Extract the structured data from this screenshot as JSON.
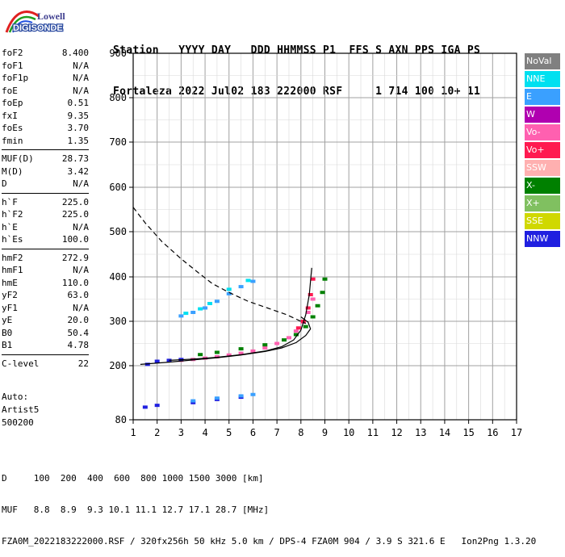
{
  "header": {
    "line1": "Station   YYYY DAY   DDD HHMMSS P1  FFS S AXN PPS IGA PS",
    "line2": "Fortaleza 2022 Jul02 183 222000 RSF     1 714 100 10+ 11"
  },
  "logo": {
    "line1": "Lowell",
    "line2": "DIGISONDE"
  },
  "params": [
    {
      "label": "foF2",
      "value": "8.400"
    },
    {
      "label": "foF1",
      "value": "N/A"
    },
    {
      "label": "foF1p",
      "value": "N/A"
    },
    {
      "label": "foE",
      "value": "N/A"
    },
    {
      "label": "foEp",
      "value": "0.51"
    },
    {
      "label": "fxI",
      "value": "9.35"
    },
    {
      "label": "foEs",
      "value": "3.70"
    },
    {
      "label": "fmin",
      "value": "1.35"
    },
    {
      "sep": true
    },
    {
      "label": "MUF(D)",
      "value": "28.73"
    },
    {
      "label": "M(D)",
      "value": "3.42"
    },
    {
      "label": "D",
      "value": "N/A"
    },
    {
      "sep": true
    },
    {
      "label": "h`F",
      "value": "225.0"
    },
    {
      "label": "h`F2",
      "value": "225.0"
    },
    {
      "label": "h`E",
      "value": "N/A"
    },
    {
      "label": "h`Es",
      "value": "100.0"
    },
    {
      "sep": true
    },
    {
      "label": "hmF2",
      "value": "272.9"
    },
    {
      "label": "hmF1",
      "value": "N/A"
    },
    {
      "label": "hmE",
      "value": "110.0"
    },
    {
      "label": "yF2",
      "value": "63.0"
    },
    {
      "label": "yF1",
      "value": "N/A"
    },
    {
      "label": "yE",
      "value": "20.0"
    },
    {
      "label": "B0",
      "value": "50.4"
    },
    {
      "label": "B1",
      "value": "4.78"
    },
    {
      "sep": true
    },
    {
      "label": "C-level",
      "value": "22"
    }
  ],
  "auto": {
    "line1": "Auto:",
    "line2": "Artist5",
    "line3": "500200"
  },
  "legend": [
    {
      "label": "NoVal",
      "bg": "#808080",
      "fg": "#ffffff"
    },
    {
      "label": "NNE",
      "bg": "#00e0f0",
      "fg": "#ffffff"
    },
    {
      "label": "E",
      "bg": "#3aa0ff",
      "fg": "#ffffff"
    },
    {
      "label": "W",
      "bg": "#b000b0",
      "fg": "#ffffff"
    },
    {
      "label": "Vo-",
      "bg": "#ff60b0",
      "fg": "#ffffff"
    },
    {
      "label": "Vo+",
      "bg": "#ff1a50",
      "fg": "#ffffff"
    },
    {
      "label": "SSW",
      "bg": "#ffb0b0",
      "fg": "#ffffff"
    },
    {
      "label": "X-",
      "bg": "#008000",
      "fg": "#ffffff"
    },
    {
      "label": "X+",
      "bg": "#80c060",
      "fg": "#ffffff"
    },
    {
      "label": "SSE",
      "bg": "#d0d800",
      "fg": "#ffffff"
    },
    {
      "label": "NNW",
      "bg": "#2020e0",
      "fg": "#ffffff"
    }
  ],
  "bottom": {
    "d_line": "D     100  200  400  600  800 1000 1500 3000 [km]",
    "muf_line": "MUF   8.8  8.9  9.3 10.1 11.1 12.7 17.1 28.7 [MHz]",
    "footer": "FZA0M_2022183222000.RSF / 320fx256h 50 kHz 5.0 km / DPS-4 FZA0M 904 / 3.9 S 321.6 E   Ion2Png 1.3.20"
  },
  "chart_data": {
    "type": "scatter",
    "xlim": [
      1,
      17
    ],
    "ylim": [
      80,
      900
    ],
    "x_ticks": [
      "1",
      "2",
      "3",
      "4",
      "5",
      "6",
      "7",
      "8",
      "9",
      "10",
      "11",
      "12",
      "13",
      "14",
      "15",
      "16",
      "17"
    ],
    "y_ticks": [
      "80",
      "200",
      "300",
      "400",
      "500",
      "600",
      "700",
      "800",
      "900"
    ],
    "grid": true,
    "series": [
      {
        "name": "Vo-",
        "color": "#ff60b0",
        "points": [
          [
            3.0,
            212
          ],
          [
            3.5,
            214
          ],
          [
            4.0,
            217
          ],
          [
            4.5,
            220
          ],
          [
            5.0,
            224
          ],
          [
            5.5,
            228
          ],
          [
            6.0,
            233
          ],
          [
            6.5,
            240
          ],
          [
            7.0,
            250
          ],
          [
            7.5,
            263
          ],
          [
            7.8,
            278
          ],
          [
            8.1,
            298
          ],
          [
            8.3,
            320
          ],
          [
            8.5,
            350
          ]
        ]
      },
      {
        "name": "X-",
        "color": "#008000",
        "points": [
          [
            3.8,
            225
          ],
          [
            4.5,
            230
          ],
          [
            5.5,
            238
          ],
          [
            6.5,
            247
          ],
          [
            7.3,
            258
          ],
          [
            7.8,
            270
          ],
          [
            8.2,
            288
          ],
          [
            8.5,
            310
          ],
          [
            8.7,
            335
          ],
          [
            8.9,
            365
          ],
          [
            9.0,
            395
          ]
        ]
      },
      {
        "name": "Vo+",
        "color": "#ff1a50",
        "points": [
          [
            7.9,
            285
          ],
          [
            8.1,
            300
          ],
          [
            8.3,
            330
          ],
          [
            8.4,
            360
          ],
          [
            8.5,
            395
          ]
        ]
      },
      {
        "name": "NNW",
        "color": "#2020e0",
        "points": [
          [
            1.6,
            203
          ],
          [
            2.0,
            210
          ],
          [
            2.5,
            212
          ],
          [
            3.0,
            214
          ],
          [
            1.5,
            108
          ],
          [
            2.0,
            112
          ],
          [
            3.5,
            118
          ],
          [
            4.5,
            125
          ],
          [
            5.5,
            130
          ]
        ]
      },
      {
        "name": "E",
        "color": "#3aa0ff",
        "points": [
          [
            3.0,
            312
          ],
          [
            3.5,
            320
          ],
          [
            4.0,
            330
          ],
          [
            4.5,
            345
          ],
          [
            5.0,
            362
          ],
          [
            5.5,
            378
          ],
          [
            6.0,
            390
          ],
          [
            3.5,
            122
          ],
          [
            4.5,
            128
          ],
          [
            5.5,
            133
          ],
          [
            6.0,
            136
          ]
        ]
      },
      {
        "name": "NNE",
        "color": "#00e0f0",
        "points": [
          [
            3.2,
            318
          ],
          [
            3.8,
            328
          ],
          [
            4.2,
            340
          ],
          [
            5.0,
            372
          ],
          [
            5.8,
            392
          ]
        ]
      }
    ],
    "curves": [
      {
        "name": "profile",
        "style": "solid",
        "x": [
          1.3,
          2.5,
          3.5,
          4.5,
          5.5,
          6.5,
          7.2,
          7.8,
          8.2,
          8.4,
          8.3,
          8.0
        ],
        "y": [
          203,
          208,
          213,
          218,
          224,
          232,
          240,
          252,
          268,
          283,
          298,
          310
        ]
      },
      {
        "name": "trace",
        "style": "solid",
        "x": [
          2.5,
          3.5,
          4.5,
          5.5,
          6.5,
          7.2,
          7.7,
          8.0,
          8.2,
          8.35,
          8.45
        ],
        "y": [
          212,
          215,
          219,
          225,
          233,
          243,
          258,
          280,
          315,
          360,
          420
        ]
      },
      {
        "name": "ray",
        "style": "dashed",
        "x": [
          1.0,
          1.5,
          2.2,
          3.0,
          3.7,
          4.3,
          5.0,
          5.8,
          6.6,
          7.4,
          8.2
        ],
        "y": [
          555,
          520,
          478,
          440,
          410,
          385,
          365,
          345,
          330,
          315,
          295
        ]
      }
    ]
  }
}
